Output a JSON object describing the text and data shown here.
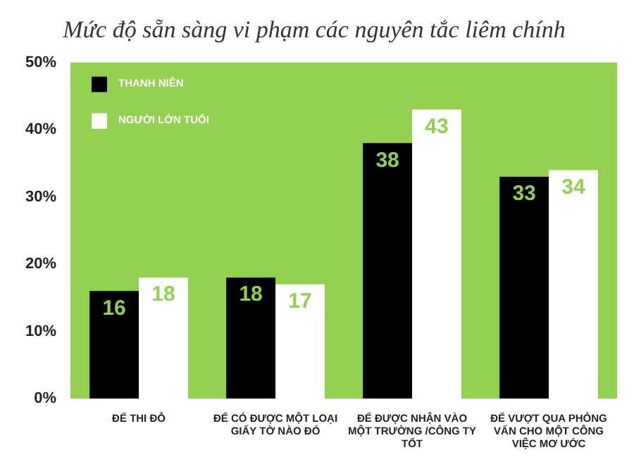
{
  "chart_data": {
    "type": "bar",
    "title": "Mức độ sẵn sàng vi phạm các nguyên tắc liêm chính",
    "categories": [
      "ĐỂ THI ĐỖ",
      "ĐỂ CÓ ĐƯỢC MỘT LOẠI GIẤY TỜ NÀO ĐÓ",
      "ĐỂ ĐƯỢC NHẬN VÀO MỘT TRƯỜNG /CÔNG TY TỐT",
      "ĐỂ VƯỢT QUA PHỎNG VẤN CHO MỘT CÔNG VIỆC MƠ ƯỚC"
    ],
    "series": [
      {
        "name": "THANH NIÊN",
        "color": "#000000",
        "values": [
          16,
          18,
          38,
          33
        ]
      },
      {
        "name": "NGƯỜI LỚN TUỔI",
        "color": "#ffffff",
        "values": [
          18,
          17,
          43,
          34
        ]
      }
    ],
    "ylim": [
      0,
      50
    ],
    "yticks": [
      {
        "value": 0,
        "label": "0%"
      },
      {
        "value": 10,
        "label": "10%"
      },
      {
        "value": 20,
        "label": "20%"
      },
      {
        "value": 30,
        "label": "30%"
      },
      {
        "value": 40,
        "label": "40%"
      },
      {
        "value": 50,
        "label": "50%"
      }
    ],
    "data_labels": true,
    "legend": "top left",
    "grid": false
  }
}
